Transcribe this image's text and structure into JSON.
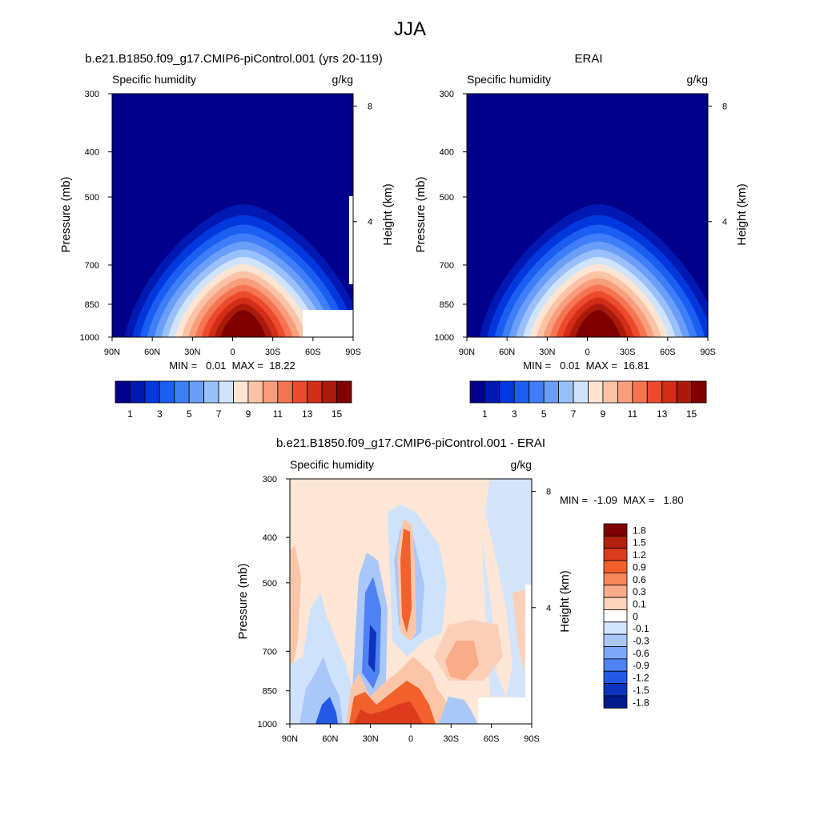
{
  "figure": {
    "title": "JJA"
  },
  "chart_data": [
    {
      "type": "heatmap",
      "title": "b.e21.B1850.f09_g17.CMIP6-piControl.001 (yrs 20-119)",
      "variable": "Specific humidity",
      "units": "g/kg",
      "ylabel": "Pressure (mb)",
      "ylabel_right": "Height (km)",
      "x_ticks": [
        "90N",
        "60N",
        "30N",
        "0",
        "30S",
        "60S",
        "90S"
      ],
      "y_ticks": [
        "300",
        "400",
        "500",
        "700",
        "850",
        "1000"
      ],
      "y_ticks_right": [
        "8",
        "4"
      ],
      "stats": "MIN =   0.01  MAX =  18.22",
      "peak_lat": -8,
      "peak_value": 18.22,
      "colorbar_labels": [
        "1",
        "3",
        "5",
        "7",
        "9",
        "11",
        "13",
        "15"
      ]
    },
    {
      "type": "heatmap",
      "title": "ERAI",
      "variable": "Specific humidity",
      "units": "g/kg",
      "ylabel": "Pressure (mb)",
      "ylabel_right": "Height (km)",
      "x_ticks": [
        "90N",
        "60N",
        "30N",
        "0",
        "30S",
        "60S",
        "90S"
      ],
      "y_ticks": [
        "300",
        "400",
        "500",
        "700",
        "850",
        "1000"
      ],
      "y_ticks_right": [
        "8",
        "4"
      ],
      "stats": "MIN =   0.01  MAX =  16.81",
      "peak_lat": -8,
      "peak_value": 16.81,
      "colorbar_labels": [
        "1",
        "3",
        "5",
        "7",
        "9",
        "11",
        "13",
        "15"
      ]
    },
    {
      "type": "heatmap",
      "title": "b.e21.B1850.f09_g17.CMIP6-piControl.001 - ERAI",
      "variable": "Specific humidity",
      "units": "g/kg",
      "ylabel": "Pressure (mb)",
      "ylabel_right": "Height (km)",
      "x_ticks": [
        "90N",
        "60N",
        "30N",
        "0",
        "30S",
        "60S",
        "90S"
      ],
      "y_ticks": [
        "300",
        "400",
        "500",
        "700",
        "850",
        "1000"
      ],
      "y_ticks_right": [
        "8",
        "4"
      ],
      "stats": "MIN =  -1.09  MAX =   1.80",
      "colorbar_labels": [
        "1.8",
        "1.5",
        "1.2",
        "0.9",
        "0.6",
        "0.3",
        "0.1",
        "0",
        "-0.1",
        "-0.3",
        "-0.6",
        "-0.9",
        "-1.2",
        "-1.5",
        "-1.8"
      ]
    }
  ],
  "colors": {
    "moisture_scale": [
      "#00008b",
      "#0019b3",
      "#0038dd",
      "#1a5ef2",
      "#3e7ef8",
      "#6a9ef9",
      "#99c0fa",
      "#cfe4fb",
      "#fde4d2",
      "#fbc3a6",
      "#f89e7c",
      "#f57452",
      "#ec4a2d",
      "#d12d17",
      "#a91a0b",
      "#7f0000"
    ],
    "diff_scale": [
      "#7f0000",
      "#b2210e",
      "#dc3c1c",
      "#f2602b",
      "#f7865b",
      "#f9ac8a",
      "#fcd3bb",
      "#ffffff",
      "#d2e4fb",
      "#a9c7f9",
      "#7ea8f7",
      "#4f82f2",
      "#2658e6",
      "#0e33c0",
      "#001a8c"
    ]
  }
}
